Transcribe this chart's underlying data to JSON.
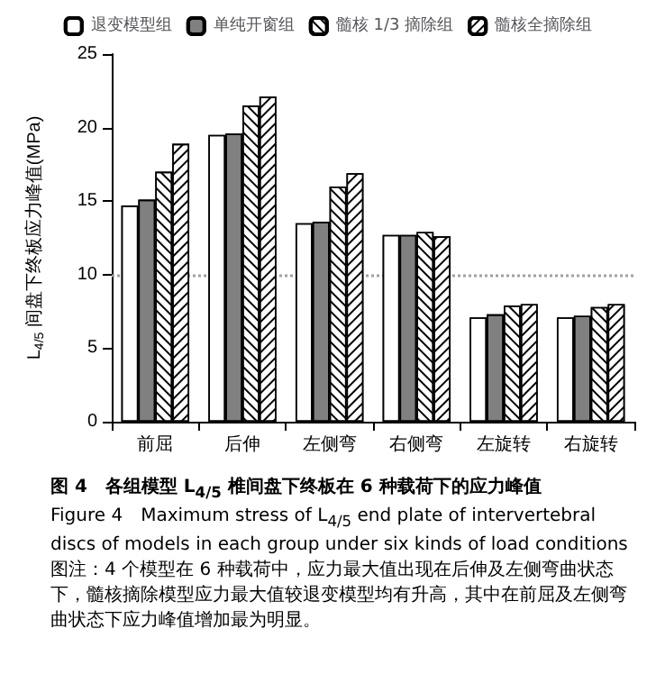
{
  "chart_data": {
    "type": "bar",
    "title": "图 4　各组模型 L$_{4/5}$ 椎间盘下终板在 6 种载荷下的应力峰值",
    "subtitle": "Figure 4　Maximum stress of L$_{4/5}$ end plate of intervertebral discs of models in each group under six kinds of load conditions",
    "annotations": [
      "图注：4 个模型在 6 种载荷中，应力最大值出现在后伸及左侧弯曲状态下，髓核摘除模型应力最大值较退变模型均有升高，其中在前屈及左侧弯曲状态下应力峰值增加最为明显。"
    ],
    "ylabel": "L$_{4/5}$ 间盘下终板应力峰值(MPa)",
    "categories": [
      "前屈",
      "后伸",
      "左侧弯",
      "右侧弯",
      "左旋转",
      "右旋转"
    ],
    "series": [
      {
        "name": "退变模型组",
        "color": "#ffffff",
        "values": [
          14.7,
          19.5,
          13.5,
          12.7,
          7.1,
          7.1
        ]
      },
      {
        "name": "单纯开窗组",
        "color": "#808080",
        "values": [
          15.1,
          19.6,
          13.6,
          12.7,
          7.3,
          7.2
        ]
      },
      {
        "name": "髓核 1/3 摘除组",
        "color": "#ffffff",
        "values": [
          17.0,
          21.5,
          16.0,
          12.9,
          7.9,
          7.8
        ]
      },
      {
        "name": "髓核全摘除组",
        "color": "#ffffff",
        "values": [
          18.9,
          22.1,
          16.9,
          12.6,
          8.0,
          8.0
        ]
      }
    ],
    "ylim": [
      0,
      25
    ],
    "yticks": [
      0,
      5,
      10,
      15,
      20,
      25
    ],
    "grid": false,
    "legend": "top",
    "ref_lines": [
      {
        "axis": "y",
        "value": 10,
        "color": "#a0a0a0",
        "line_style": "dotted"
      }
    ]
  }
}
